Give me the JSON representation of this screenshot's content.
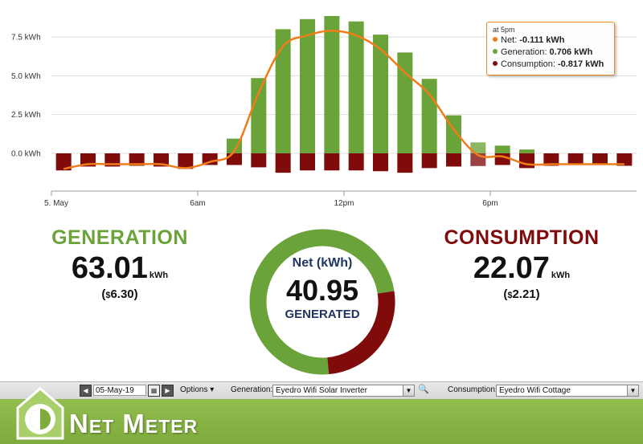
{
  "chart_data": {
    "type": "bar",
    "x_tick_labels": [
      "5. May",
      "6am",
      "12pm",
      "6pm"
    ],
    "y_tick_labels": [
      "0.0 kWh",
      "2.5 kWh",
      "5.0 kWh",
      "7.5 kWh"
    ],
    "y_ticks": [
      0,
      2.5,
      5,
      7.5
    ],
    "ylim": [
      -1.5,
      9.0
    ],
    "hours": [
      0,
      1,
      2,
      3,
      4,
      5,
      6,
      7,
      8,
      9,
      10,
      11,
      12,
      13,
      14,
      15,
      16,
      17,
      18,
      19,
      20,
      21,
      22,
      23
    ],
    "series": [
      {
        "name": "Generation",
        "color": "#6aa339",
        "values": [
          0,
          0,
          0,
          0,
          0,
          0,
          0,
          0.95,
          4.85,
          8.0,
          8.65,
          8.85,
          8.5,
          7.65,
          6.5,
          4.8,
          2.45,
          0.706,
          0.5,
          0.25,
          0,
          0,
          0,
          0
        ]
      },
      {
        "name": "Consumption",
        "color": "#800b0b",
        "values": [
          -1.1,
          -0.85,
          -0.85,
          -0.8,
          -0.85,
          -1.0,
          -0.75,
          -0.75,
          -0.9,
          -1.25,
          -1.1,
          -1.1,
          -1.1,
          -1.15,
          -1.25,
          -0.95,
          -0.85,
          -0.817,
          -0.75,
          -0.95,
          -0.8,
          -0.75,
          -0.75,
          -0.8
        ]
      },
      {
        "name": "Net",
        "color": "#f07d1a",
        "values": [
          -1.0,
          -0.7,
          -0.7,
          -0.7,
          -0.7,
          -0.95,
          -0.55,
          0.15,
          3.9,
          6.9,
          7.6,
          7.9,
          7.6,
          6.7,
          5.2,
          3.8,
          1.55,
          -0.111,
          -0.2,
          -0.7,
          -0.7,
          -0.7,
          -0.7,
          -0.7
        ]
      }
    ],
    "highlight_index": 17,
    "grid": true,
    "legend": "none"
  },
  "tooltip": {
    "header": "at 5pm",
    "rows": [
      {
        "label": "Net:",
        "value": "-0.111 kWh",
        "color": "#f07d1a"
      },
      {
        "label": "Generation:",
        "value": "0.706 kWh",
        "color": "#6aa339"
      },
      {
        "label": "Consumption:",
        "value": "-0.817 kWh",
        "color": "#800b0b"
      }
    ]
  },
  "generation": {
    "title": "GENERATION",
    "value": "63.01",
    "unit": "kWh",
    "money_open": "(",
    "currency": "$",
    "money": "6.30",
    "money_close": ")"
  },
  "consumption": {
    "title": "CONSUMPTION",
    "value": "22.07",
    "unit": "kWh",
    "money_open": "(",
    "currency": "$",
    "money": "2.21",
    "money_close": ")"
  },
  "net": {
    "label": "Net (kWh)",
    "value": "40.95",
    "status": "GENERATED",
    "generated": 63.01,
    "consumed": 22.07
  },
  "colors": {
    "generation": "#6aa339",
    "consumption": "#800b0b",
    "net": "#f07d1a",
    "brand_green": "#7dab3c"
  },
  "toolbar": {
    "prev_icon": "◀",
    "next_icon": "▶",
    "date": "05-May-19",
    "calendar_icon": "▦",
    "options_label": "Options",
    "options_arrow": "▾",
    "generation_label": "Generation:",
    "generation_value": "Eyedro Wifi Solar Inverter",
    "consumption_label": "Consumption:",
    "consumption_value": "Eyedro Wifi Cottage",
    "dropdown_arrow": "▼",
    "search_icon": "🔍"
  },
  "footer": {
    "brand": "Net Meter"
  }
}
